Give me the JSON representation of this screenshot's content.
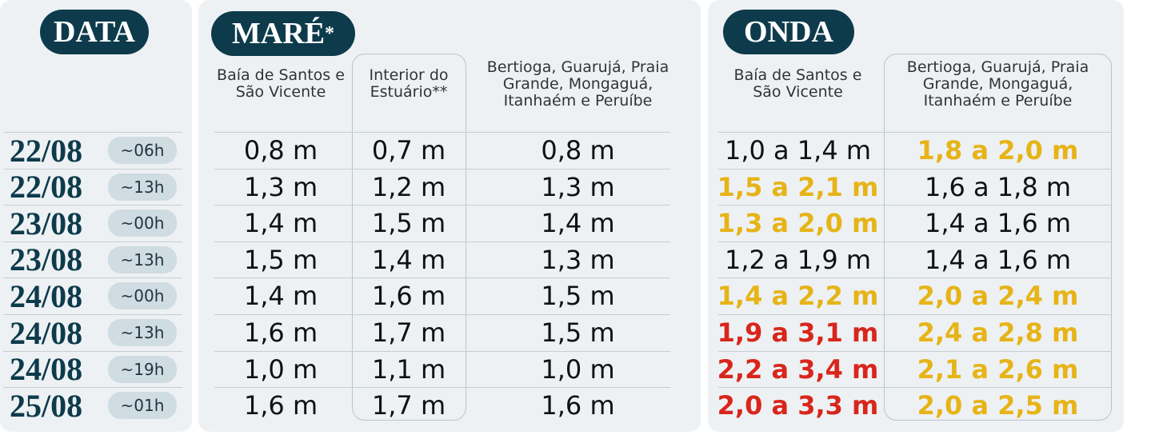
{
  "date_panel": {
    "title": "DATA",
    "rows": [
      {
        "date": "22/08",
        "time": "~06h"
      },
      {
        "date": "22/08",
        "time": "~13h"
      },
      {
        "date": "23/08",
        "time": "~00h"
      },
      {
        "date": "23/08",
        "time": "~13h"
      },
      {
        "date": "24/08",
        "time": "~00h"
      },
      {
        "date": "24/08",
        "time": "~13h"
      },
      {
        "date": "24/08",
        "time": "~19h"
      },
      {
        "date": "25/08",
        "time": "~01h"
      }
    ]
  },
  "tide_panel": {
    "title": "MARÉ",
    "title_mark": "*",
    "columns": [
      "Baía de Santos e São Vicente",
      "Interior do Estuário**",
      "Bertioga, Guarujá, Praia Grande, Mongaguá, Itanhaém e Peruíbe"
    ],
    "rows": [
      [
        "0,8 m",
        "0,7 m",
        "0,8 m"
      ],
      [
        "1,3 m",
        "1,2 m",
        "1,3 m"
      ],
      [
        "1,4 m",
        "1,5 m",
        "1,4 m"
      ],
      [
        "1,5 m",
        "1,4 m",
        "1,3 m"
      ],
      [
        "1,4 m",
        "1,6 m",
        "1,5 m"
      ],
      [
        "1,6 m",
        "1,7 m",
        "1,5 m"
      ],
      [
        "1,0 m",
        "1,1 m",
        "1,0 m"
      ],
      [
        "1,6 m",
        "1,7 m",
        "1,6 m"
      ]
    ]
  },
  "wave_panel": {
    "title": "ONDA",
    "columns": [
      "Baía de Santos e São Vicente",
      "Bertioga, Guarujá, Praia Grande, Mongaguá, Itanhaém e Peruíbe"
    ],
    "rows": [
      [
        {
          "text": "1,0 a 1,4 m",
          "color": "#111111"
        },
        {
          "text": "1,8 a 2,0 m",
          "color": "#e6b417"
        }
      ],
      [
        {
          "text": "1,5 a 2,1 m",
          "color": "#e6b417"
        },
        {
          "text": "1,6 a 1,8 m",
          "color": "#111111"
        }
      ],
      [
        {
          "text": "1,3 a 2,0 m",
          "color": "#e6b417"
        },
        {
          "text": "1,4 a 1,6 m",
          "color": "#111111"
        }
      ],
      [
        {
          "text": "1,2 a 1,9 m",
          "color": "#111111"
        },
        {
          "text": "1,4 a 1,6 m",
          "color": "#111111"
        }
      ],
      [
        {
          "text": "1,4 a 2,2 m",
          "color": "#e6b417"
        },
        {
          "text": "2,0 a 2,4 m",
          "color": "#e6b417"
        }
      ],
      [
        {
          "text": "1,9 a 3,1 m",
          "color": "#d8261c"
        },
        {
          "text": "2,4 a 2,8 m",
          "color": "#e6b417"
        }
      ],
      [
        {
          "text": "2,2 a 3,4 m",
          "color": "#d8261c"
        },
        {
          "text": "2,1 a 2,6 m",
          "color": "#e6b417"
        }
      ],
      [
        {
          "text": "2,0 a 3,3 m",
          "color": "#d8261c"
        },
        {
          "text": "2,0 a 2,5 m",
          "color": "#e6b417"
        }
      ]
    ]
  }
}
